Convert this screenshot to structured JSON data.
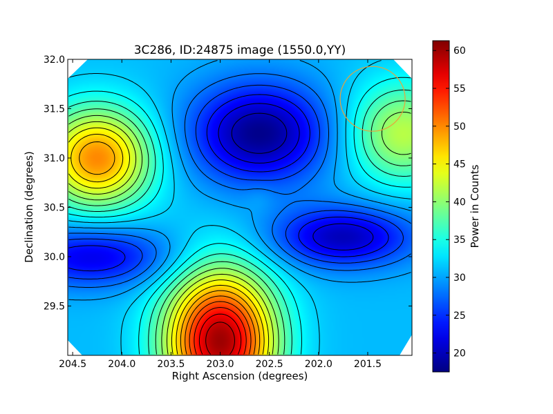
{
  "chart_data": {
    "type": "heatmap",
    "title": "3C286, ID:24875 image (1550.0,YY)",
    "xlabel": "Right Ascension (degrees)",
    "ylabel": "Declination (degrees)",
    "xlim": [
      204.55,
      201.05
    ],
    "ylim": [
      29.0,
      32.0
    ],
    "x_reversed": true,
    "xticks": [
      {
        "value": 204.5,
        "label": "204.5"
      },
      {
        "value": 204.0,
        "label": "204.0"
      },
      {
        "value": 203.5,
        "label": "203.5"
      },
      {
        "value": 203.0,
        "label": "203.0"
      },
      {
        "value": 202.5,
        "label": "202.5"
      },
      {
        "value": 202.0,
        "label": "202.0"
      },
      {
        "value": 201.5,
        "label": "201.5"
      }
    ],
    "yticks": [
      {
        "value": 32.0,
        "label": "32.0"
      },
      {
        "value": 31.5,
        "label": "31.5"
      },
      {
        "value": 31.0,
        "label": "31.0"
      },
      {
        "value": 30.5,
        "label": "30.5"
      },
      {
        "value": 30.0,
        "label": "30.0"
      },
      {
        "value": 29.5,
        "label": "29.5"
      }
    ],
    "colorbar": {
      "label": "Power in Counts",
      "range": [
        17.5,
        61.3
      ],
      "ticks": [
        {
          "value": 20,
          "label": "20"
        },
        {
          "value": 25,
          "label": "25"
        },
        {
          "value": 30,
          "label": "30"
        },
        {
          "value": 35,
          "label": "35"
        },
        {
          "value": 40,
          "label": "40"
        },
        {
          "value": 45,
          "label": "45"
        },
        {
          "value": 50,
          "label": "50"
        },
        {
          "value": 55,
          "label": "55"
        },
        {
          "value": 60,
          "label": "60"
        }
      ],
      "colormap": "jet"
    },
    "field_features": [
      {
        "ra": 204.25,
        "dec": 31.0,
        "value": 50,
        "kind": "peak"
      },
      {
        "ra": 203.0,
        "dec": 29.15,
        "value": 60,
        "kind": "peak"
      },
      {
        "ra": 201.15,
        "dec": 31.25,
        "value": 42,
        "kind": "peak"
      },
      {
        "ra": 202.6,
        "dec": 31.25,
        "value": 18,
        "kind": "trough"
      },
      {
        "ra": 201.75,
        "dec": 30.2,
        "value": 20,
        "kind": "trough"
      },
      {
        "ra": 204.3,
        "dec": 30.0,
        "value": 22,
        "kind": "trough"
      },
      {
        "ra": 202.6,
        "dec": 30.6,
        "value": 32,
        "kind": "saddle"
      }
    ],
    "contour_levels": [
      20,
      22,
      24,
      26,
      28,
      30,
      32,
      34,
      36,
      38,
      40,
      42,
      44,
      46,
      48,
      50,
      52,
      54,
      56,
      58,
      60
    ],
    "beam_marker": {
      "ra": 201.45,
      "dec": 31.6,
      "color": "#e8a33a"
    }
  }
}
